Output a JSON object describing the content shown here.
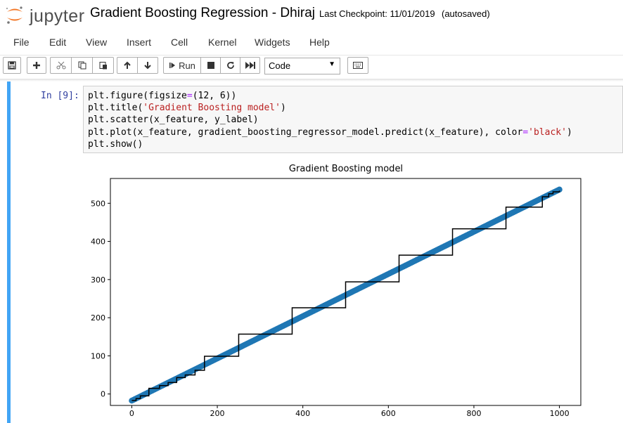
{
  "header": {
    "logo_text": "jupyter",
    "notebook_title": "Gradient Boosting Regression - Dhiraj",
    "checkpoint": "Last Checkpoint: 11/01/2019",
    "autosave_status": "(autosaved)"
  },
  "menu": [
    "File",
    "Edit",
    "View",
    "Insert",
    "Cell",
    "Kernel",
    "Widgets",
    "Help"
  ],
  "toolbar": {
    "run_label": "Run",
    "cell_type": "Code",
    "icons": [
      "save-icon",
      "plus-icon",
      "cut-icon",
      "copy-icon",
      "paste-icon",
      "arrow-up-icon",
      "arrow-down-icon",
      "step-forward-icon",
      "stop-icon",
      "restart-icon",
      "fast-forward-icon",
      "keyboard-icon"
    ]
  },
  "cell": {
    "prompt": "In [9]:",
    "code_lines": [
      "plt.figure(figsize=(12, 6))",
      "plt.title('Gradient Boosting model')",
      "plt.scatter(x_feature, y_label)",
      "plt.plot(x_feature, gradient_boosting_regressor_model.predict(x_feature), color='black')",
      "plt.show()"
    ]
  },
  "chart_data": {
    "type": "scatter",
    "title": "Gradient Boosting model",
    "xlabel": "",
    "ylabel": "",
    "xlim": [
      -50,
      1050
    ],
    "ylim": [
      -30,
      565
    ],
    "xticks": [
      0,
      200,
      400,
      600,
      800,
      1000
    ],
    "yticks": [
      0,
      100,
      200,
      300,
      400,
      500
    ],
    "series": [
      {
        "kind": "scatter",
        "color": "#1f77b4",
        "x_range": [
          0,
          1000
        ],
        "y_range": [
          -17.5,
          536
        ],
        "note_relation": "y = 0.555 x - 17.5"
      },
      {
        "kind": "step-line",
        "color": "#000000",
        "x": [
          0,
          10,
          20,
          40,
          65,
          85,
          105,
          125,
          148,
          170,
          250,
          375,
          500,
          625,
          750,
          875,
          960,
          975,
          985,
          1000
        ],
        "y": [
          -17,
          -12,
          -5,
          15,
          22,
          30,
          43,
          50,
          62,
          99,
          157,
          226,
          294,
          364,
          433,
          490,
          517,
          525,
          530,
          533
        ]
      }
    ],
    "grid": false,
    "legend": "none"
  }
}
